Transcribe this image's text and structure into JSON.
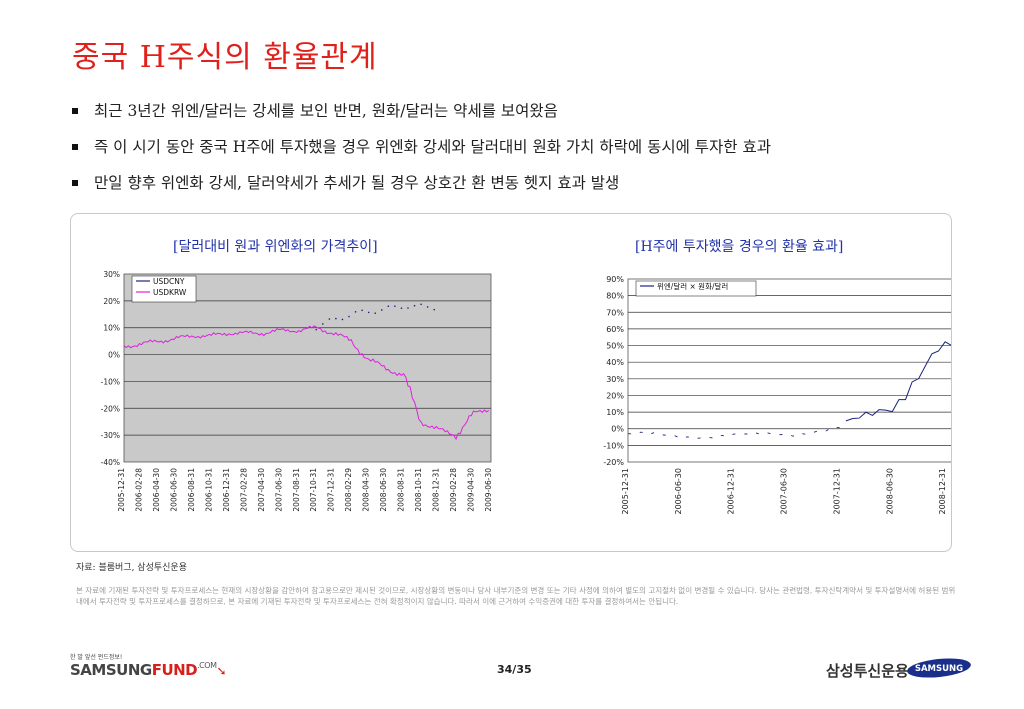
{
  "title": "중국 H주식의 환율관계",
  "bullets": [
    "최근 3년간 위엔/달러는 강세를 보인 반면, 원화/달러는 약세를 보여왔음",
    "즉 이 시기 동안 중국 H주에 투자했을 경우 위엔화 강세와 달러대비 원화 가치 하락에 동시에 투자한 효과",
    "만일 향후 위엔화 강세, 달러약세가 추세가 될 경우 상호간 환 변동 헷지 효과 발생"
  ],
  "chart_data": [
    {
      "type": "line",
      "title": "[달러대비 원과 위엔화의 가격추이]",
      "ylim": [
        -40,
        30
      ],
      "yticks": [
        "30%",
        "20%",
        "10%",
        "0%",
        "-10%",
        "-20%",
        "-30%",
        "-40%"
      ],
      "grid": true,
      "legend_position": "top-left",
      "x": [
        "2005-12-31",
        "2006-02-28",
        "2006-04-30",
        "2006-06-30",
        "2006-08-31",
        "2006-10-31",
        "2006-12-31",
        "2007-02-28",
        "2007-04-30",
        "2007-06-30",
        "2007-08-31",
        "2007-10-31",
        "2007-12-31",
        "2008-02-29",
        "2008-04-30",
        "2008-06-30",
        "2008-08-31",
        "2008-10-31",
        "2008-12-31",
        "2009-02-28",
        "2009-04-30",
        "2009-06-30"
      ],
      "series": [
        {
          "name": "USDCNY",
          "color": "#1a237e",
          "style": "sparse-dotted",
          "values": [
            null,
            null,
            null,
            null,
            null,
            null,
            null,
            null,
            null,
            null,
            null,
            10,
            13,
            15,
            16,
            17,
            18,
            18,
            17,
            null,
            null,
            null
          ]
        },
        {
          "name": "USDKRW",
          "color": "#dd22dd",
          "values": [
            3,
            4,
            5,
            6,
            7,
            7,
            8,
            8,
            8,
            9,
            9,
            10,
            8,
            5,
            -2,
            -5,
            -8,
            -25,
            -28,
            -30,
            -22,
            -20
          ]
        }
      ]
    },
    {
      "type": "line",
      "title": "[H주에 투자했을 경우의 환율 효과]",
      "ylim": [
        -20,
        90
      ],
      "yticks": [
        "90%",
        "80%",
        "70%",
        "60%",
        "50%",
        "40%",
        "30%",
        "20%",
        "10%",
        "0%",
        "-10%",
        "-20%"
      ],
      "grid": true,
      "legend_position": "top-left",
      "x": [
        "2005-12-31",
        "2006-06-30",
        "2006-12-31",
        "2007-06-30",
        "2007-12-31",
        "2008-06-30",
        "2008-12-31",
        "2009-06-30"
      ],
      "series": [
        {
          "name": "위엔/달러 × 원화/달러",
          "color": "#1a237e",
          "values": [
            -3,
            -5,
            -4,
            -3,
            0,
            15,
            50,
            45
          ]
        }
      ]
    }
  ],
  "source": "자료: 블룸버그, 삼성투신운용",
  "disclaimer": "본 자료에 기재된 투자전략 및 투자프로세스는 현재의 시장상황을 감안하여 참고용으로만 제시된 것이므로, 시장상황의 변동이나 당사 내부기준의 변경 또는 기타 사정에 의하여 별도의 고지절차 없이 변경될 수 있습니다. 당사는 관련법령, 투자신탁계약서 및 투자설명서에 허용된 범위내에서 투자전략 및 투자프로세스를 결정하므로, 본 자료에 기재된 투자전략 및 투자프로세스는 전혀 확정적이지 않습니다. 따라서 이에 근거하여 수익증권에 대한 투자를 결정하여서는 안됩니다.",
  "footer": {
    "logo_small": "한 발 앞선 펀드정보!",
    "logo_a": "SAMSUNG",
    "logo_b": "FUND",
    "logo_com": ".COM",
    "page": "34/35",
    "ko_brand": "삼성투신운용",
    "en_brand": "SAMSUNG"
  }
}
